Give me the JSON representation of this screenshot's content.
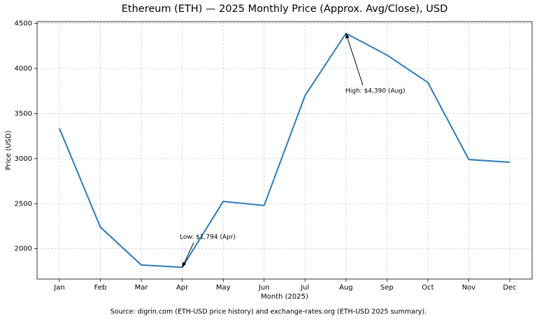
{
  "chart_data": {
    "type": "line",
    "title": "Ethereum (ETH) — 2025 Monthly Price (Approx. Avg/Close), USD",
    "x_label": "Month (2025)",
    "y_label": "Price (USD)",
    "categories": [
      "Jan",
      "Feb",
      "Mar",
      "Apr",
      "May",
      "Jun",
      "Jul",
      "Aug",
      "Sep",
      "Oct",
      "Nov",
      "Dec"
    ],
    "series": [
      {
        "name": "ETH-USD",
        "color": "#2b7bba",
        "values": [
          3335,
          2240,
          1820,
          1794,
          2525,
          2480,
          3700,
          4390,
          4150,
          3845,
          2990,
          2960
        ]
      }
    ],
    "ylim": [
      1664,
      4520
    ],
    "yticks": [
      2000,
      2500,
      3000,
      3500,
      4000,
      4500
    ],
    "grid": true,
    "annotations": [
      {
        "text": "Low: $1,794 (Apr)"
      },
      {
        "text": "High: $4,390 (Aug)"
      }
    ],
    "source": "Source: digrin.com (ETH-USD price history) and exchange-rates.org (ETH-USD 2025 summary)."
  }
}
